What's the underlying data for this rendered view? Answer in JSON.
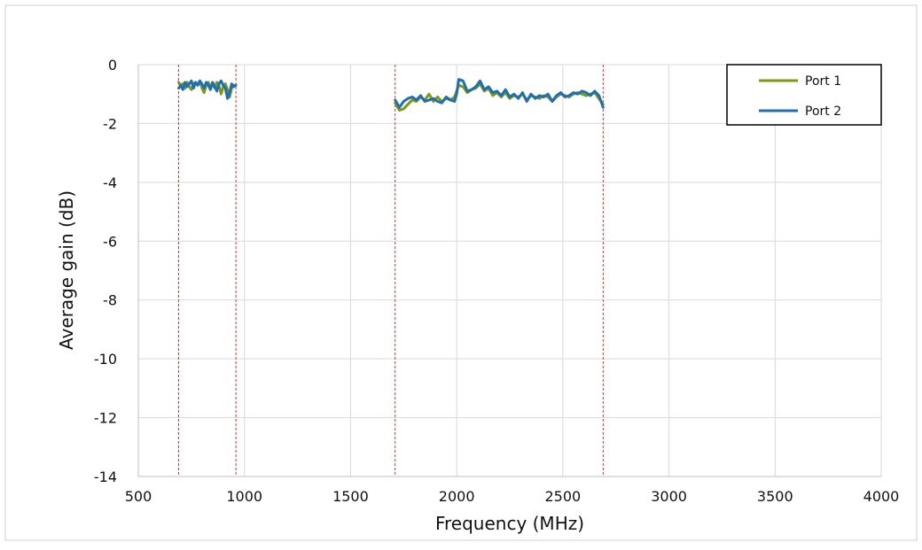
{
  "chart_data": {
    "type": "line",
    "title": "",
    "xlabel": "Frequency (MHz)",
    "ylabel": "Average gain (dB)",
    "xlim": [
      500,
      4000
    ],
    "ylim": [
      -14,
      0
    ],
    "x_ticks": [
      500,
      1000,
      1500,
      2000,
      2500,
      3000,
      3500,
      4000
    ],
    "y_ticks": [
      0,
      -2,
      -4,
      -6,
      -8,
      -10,
      -12,
      -14
    ],
    "grid": "vertical and horizontal",
    "legend_position": "top-right",
    "band_markers": {
      "x": [
        690,
        960,
        1710,
        2690
      ],
      "color": "#e8302a",
      "style": "dashed"
    },
    "series": [
      {
        "name": "Port 1",
        "color": "#7f9a10",
        "segments": [
          {
            "x": [
              690,
              700,
              710,
              720,
              730,
              740,
              750,
              760,
              770,
              780,
              790,
              800,
              810,
              820,
              830,
              840,
              850,
              860,
              870,
              880,
              890,
              900,
              910,
              920,
              930,
              940,
              950,
              960
            ],
            "y": [
              -0.6,
              -0.7,
              -0.65,
              -0.8,
              -0.6,
              -0.75,
              -0.85,
              -0.65,
              -0.6,
              -0.7,
              -0.55,
              -0.8,
              -0.95,
              -0.7,
              -0.6,
              -0.75,
              -0.65,
              -0.8,
              -0.6,
              -0.7,
              -1.0,
              -0.75,
              -0.65,
              -0.85,
              -1.1,
              -0.8,
              -0.7,
              -0.7
            ]
          },
          {
            "x": [
              1710,
              1730,
              1750,
              1770,
              1790,
              1810,
              1830,
              1850,
              1870,
              1890,
              1910,
              1930,
              1950,
              1970,
              1990,
              2000,
              2010,
              2030,
              2050,
              2070,
              2090,
              2110,
              2130,
              2150,
              2170,
              2190,
              2210,
              2230,
              2250,
              2270,
              2290,
              2310,
              2330,
              2350,
              2370,
              2390,
              2410,
              2430,
              2450,
              2470,
              2490,
              2510,
              2530,
              2550,
              2570,
              2590,
              2610,
              2630,
              2650,
              2670,
              2690
            ],
            "y": [
              -1.3,
              -1.55,
              -1.5,
              -1.35,
              -1.2,
              -1.25,
              -1.1,
              -1.2,
              -1.0,
              -1.25,
              -1.1,
              -1.25,
              -1.15,
              -1.2,
              -1.1,
              -0.9,
              -0.7,
              -0.75,
              -0.95,
              -0.85,
              -0.8,
              -0.65,
              -0.9,
              -0.8,
              -1.05,
              -0.95,
              -1.1,
              -0.95,
              -1.15,
              -1.05,
              -1.1,
              -1.0,
              -1.2,
              -1.05,
              -1.1,
              -1.15,
              -1.05,
              -1.1,
              -1.25,
              -1.1,
              -1.0,
              -1.05,
              -1.1,
              -1.0,
              -0.95,
              -1.0,
              -1.05,
              -1.0,
              -0.95,
              -1.15,
              -1.35
            ]
          }
        ]
      },
      {
        "name": "Port 2",
        "color": "#1f6fb5",
        "segments": [
          {
            "x": [
              690,
              700,
              710,
              720,
              730,
              740,
              750,
              760,
              770,
              780,
              790,
              800,
              810,
              820,
              830,
              840,
              850,
              860,
              870,
              880,
              890,
              900,
              910,
              920,
              930,
              940,
              950,
              960
            ],
            "y": [
              -0.8,
              -0.7,
              -0.85,
              -0.6,
              -0.75,
              -0.65,
              -0.55,
              -0.8,
              -0.6,
              -0.7,
              -0.55,
              -0.65,
              -0.8,
              -0.6,
              -0.7,
              -0.85,
              -0.6,
              -0.75,
              -0.9,
              -0.65,
              -0.55,
              -0.7,
              -0.8,
              -1.15,
              -0.95,
              -0.65,
              -0.75,
              -0.7
            ]
          },
          {
            "x": [
              1710,
              1730,
              1750,
              1770,
              1790,
              1810,
              1830,
              1850,
              1870,
              1890,
              1910,
              1930,
              1950,
              1970,
              1990,
              2000,
              2010,
              2030,
              2050,
              2070,
              2090,
              2110,
              2130,
              2150,
              2170,
              2190,
              2210,
              2230,
              2250,
              2270,
              2290,
              2310,
              2330,
              2350,
              2370,
              2390,
              2410,
              2430,
              2450,
              2470,
              2490,
              2510,
              2530,
              2550,
              2570,
              2590,
              2610,
              2630,
              2650,
              2670,
              2690
            ],
            "y": [
              -1.2,
              -1.45,
              -1.25,
              -1.15,
              -1.1,
              -1.2,
              -1.05,
              -1.25,
              -1.2,
              -1.15,
              -1.25,
              -1.3,
              -1.1,
              -1.2,
              -1.25,
              -1.0,
              -0.5,
              -0.55,
              -0.9,
              -0.85,
              -0.75,
              -0.55,
              -0.85,
              -0.75,
              -0.95,
              -0.9,
              -1.05,
              -0.85,
              -1.1,
              -1.0,
              -1.15,
              -0.95,
              -1.25,
              -1.0,
              -1.15,
              -1.05,
              -1.1,
              -1.0,
              -1.25,
              -1.05,
              -0.95,
              -1.1,
              -1.05,
              -0.95,
              -1.0,
              -0.9,
              -0.95,
              -1.05,
              -0.9,
              -1.05,
              -1.45
            ]
          }
        ]
      }
    ]
  }
}
